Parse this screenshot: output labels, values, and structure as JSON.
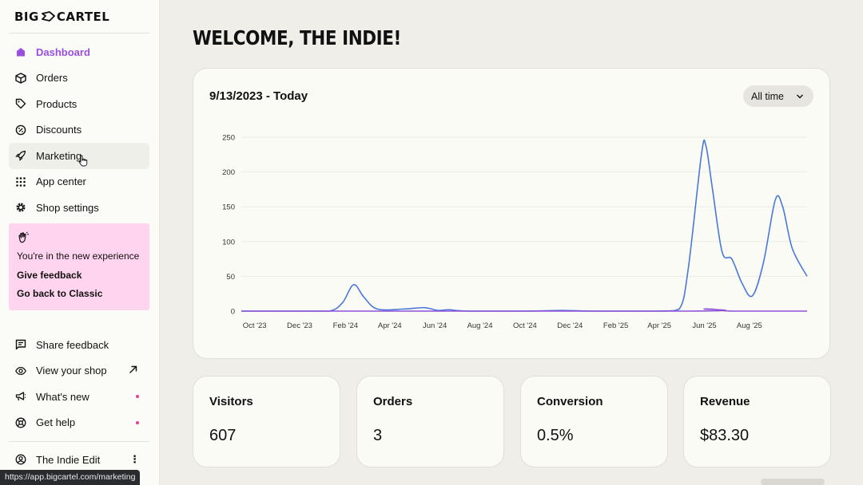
{
  "brand": {
    "logo_text_1": "BIG",
    "logo_text_2": "CARTEL"
  },
  "nav": {
    "items": [
      {
        "label": "Dashboard",
        "icon": "home-icon"
      },
      {
        "label": "Orders",
        "icon": "box-icon"
      },
      {
        "label": "Products",
        "icon": "tag-icon"
      },
      {
        "label": "Discounts",
        "icon": "discount-icon"
      },
      {
        "label": "Marketing",
        "icon": "rocket-icon"
      },
      {
        "label": "App center",
        "icon": "grid-icon"
      },
      {
        "label": "Shop settings",
        "icon": "gear-icon"
      }
    ]
  },
  "promo": {
    "message": "You're in the new experience",
    "feedback_link": "Give feedback",
    "classic_link": "Go back to Classic"
  },
  "secondary_nav": {
    "items": [
      {
        "label": "Share feedback",
        "icon": "chat-icon"
      },
      {
        "label": "View your shop",
        "icon": "eye-icon"
      },
      {
        "label": "What's new",
        "icon": "megaphone-icon"
      },
      {
        "label": "Get help",
        "icon": "help-icon"
      }
    ]
  },
  "account": {
    "name": "The Indie Edit"
  },
  "status_bar": {
    "url": "https://app.bigcartel.com/marketing"
  },
  "page": {
    "title": "WELCOME, THE INDIE!"
  },
  "chart_card": {
    "date_range": "9/13/2023 - Today",
    "timeframe": "All time"
  },
  "chart_data": {
    "type": "line",
    "x_tick_labels": [
      "Oct '23",
      "Dec '23",
      "Feb '24",
      "Apr '24",
      "Jun '24",
      "Aug '24",
      "Oct '24",
      "Dec '24",
      "Feb '25",
      "Apr '25",
      "Jun '25",
      "Aug '25"
    ],
    "y_ticks": [
      0,
      50,
      100,
      150,
      200,
      250
    ],
    "ylim": [
      0,
      250
    ],
    "xlim": [
      "2023-09-13",
      "2025-10-18"
    ],
    "grid": true,
    "series": [
      {
        "color": "#4a78d8",
        "points": [
          [
            "2023-09-13",
            0
          ],
          [
            "2023-12-01",
            0
          ],
          [
            "2024-01-10",
            0
          ],
          [
            "2024-01-28",
            12
          ],
          [
            "2024-02-12",
            38
          ],
          [
            "2024-02-26",
            20
          ],
          [
            "2024-03-15",
            3
          ],
          [
            "2024-04-20",
            3
          ],
          [
            "2024-05-18",
            5
          ],
          [
            "2024-06-05",
            1
          ],
          [
            "2024-06-20",
            2
          ],
          [
            "2024-07-15",
            0
          ],
          [
            "2024-10-01",
            0
          ],
          [
            "2024-11-20",
            1
          ],
          [
            "2024-12-30",
            0
          ],
          [
            "2025-04-01",
            0
          ],
          [
            "2025-04-28",
            3
          ],
          [
            "2025-05-10",
            60
          ],
          [
            "2025-05-28",
            225
          ],
          [
            "2025-06-03",
            238
          ],
          [
            "2025-06-12",
            175
          ],
          [
            "2025-06-25",
            85
          ],
          [
            "2025-07-08",
            75
          ],
          [
            "2025-07-22",
            40
          ],
          [
            "2025-08-05",
            22
          ],
          [
            "2025-08-20",
            70
          ],
          [
            "2025-09-05",
            160
          ],
          [
            "2025-09-15",
            150
          ],
          [
            "2025-09-28",
            90
          ],
          [
            "2025-10-18",
            50
          ]
        ]
      },
      {
        "color": "#8e4fd9",
        "points": [
          [
            "2023-09-13",
            0
          ],
          [
            "2025-05-10",
            0
          ],
          [
            "2025-06-01",
            3
          ],
          [
            "2025-06-20",
            2
          ],
          [
            "2025-07-10",
            0
          ],
          [
            "2025-10-18",
            0
          ]
        ]
      }
    ]
  },
  "stats": [
    {
      "label": "Visitors",
      "value": "607"
    },
    {
      "label": "Orders",
      "value": "3"
    },
    {
      "label": "Conversion",
      "value": "0.5%"
    },
    {
      "label": "Revenue",
      "value": "$83.30"
    }
  ],
  "colors": {
    "accent": "#9a4fe0",
    "promo_bg": "#ffd4ef",
    "notify_dot": "#e93a9a"
  }
}
